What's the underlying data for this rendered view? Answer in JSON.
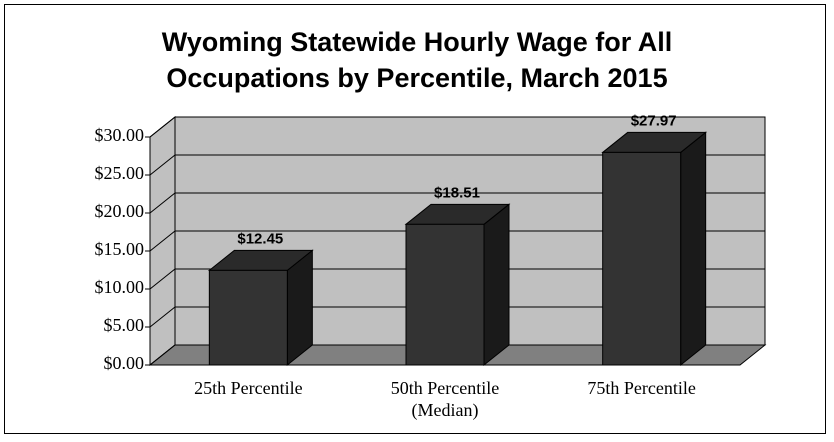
{
  "chart_data": {
    "type": "bar3d",
    "title": "Wyoming Statewide Hourly Wage for All Occupations by Percentile, March 2015",
    "categories": [
      "25th Percentile",
      "50th Percentile (Median)",
      "75th Percentile"
    ],
    "values": [
      12.45,
      18.51,
      27.97
    ],
    "value_labels": [
      "$12.45",
      "$18.51",
      "$27.97"
    ],
    "color": "#333333",
    "ylim": [
      0,
      30
    ],
    "yticks": [
      {
        "value": 0,
        "label": "$0.00"
      },
      {
        "value": 5,
        "label": "$5.00"
      },
      {
        "value": 10,
        "label": "$10.00"
      },
      {
        "value": 15,
        "label": "$15.00"
      },
      {
        "value": 20,
        "label": "$20.00"
      },
      {
        "value": 25,
        "label": "$25.00"
      },
      {
        "value": 30,
        "label": "$30.00"
      }
    ],
    "grid": true
  }
}
